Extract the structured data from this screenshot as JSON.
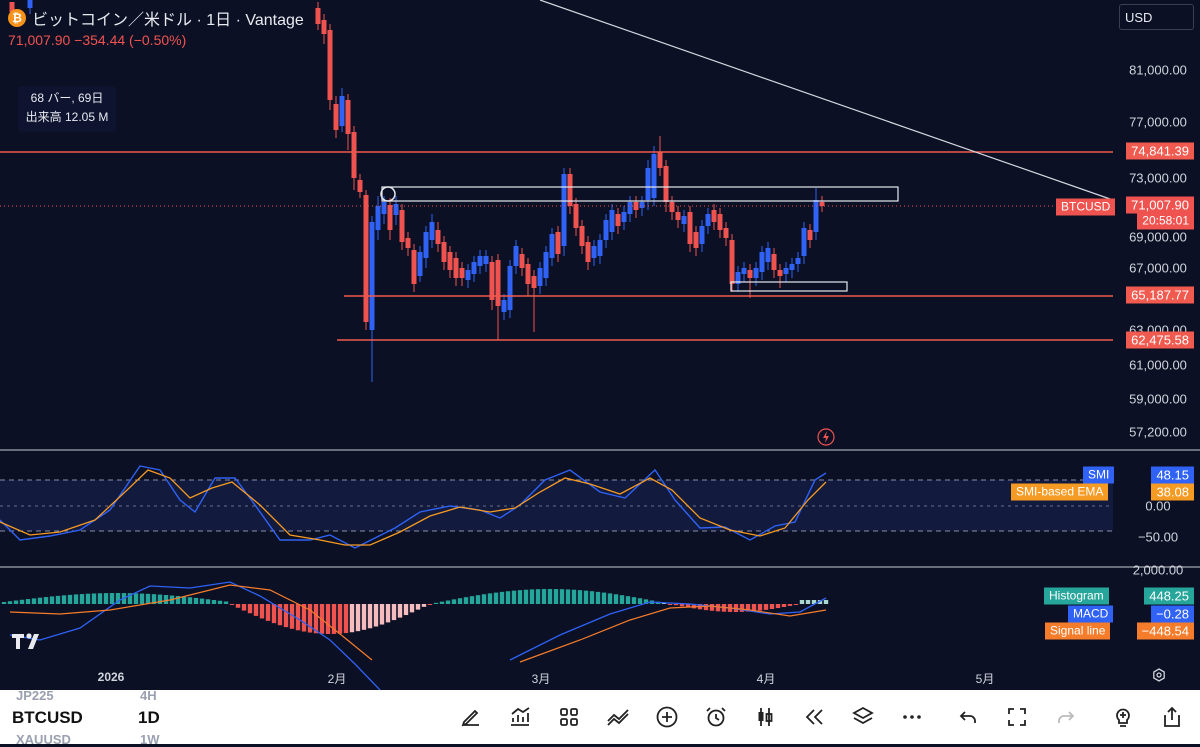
{
  "header": {
    "title": "ビットコイン／米ドル · 1日 · Vantage",
    "price_line": "71,007.90  −354.44 (−0.50%)",
    "coin_glyph": "₿"
  },
  "info": {
    "bars": "68 バー, 69日",
    "volume": "出来高 12.05 M"
  },
  "currency": "USD",
  "price_axis": {
    "ticks": [
      "81,000.00",
      "77,000.00",
      "73,000.00",
      "69,000.00",
      "67,000.00",
      "63,000.00",
      "61,000.00",
      "59,000.00",
      "57,200.00"
    ]
  },
  "levels": {
    "upper": "74,841.39",
    "mid": "65,187.77",
    "lower": "62,475.58"
  },
  "current": {
    "symbol": "BTCUSD",
    "price": "71,007.90",
    "countdown": "20:58:01"
  },
  "smi": {
    "ticks": [
      "0.00",
      "−50.00"
    ],
    "label_smi": "SMI",
    "value_smi": "48.15",
    "label_ema": "SMI-based EMA",
    "value_ema": "38.08"
  },
  "macd": {
    "tick": "2,000.00",
    "label_hist": "Histogram",
    "value_hist": "448.25",
    "label_macd": "MACD",
    "value_macd": "−0.28",
    "label_signal": "Signal line",
    "value_signal": "−448.54"
  },
  "time_axis": [
    "2026",
    "2月",
    "3月",
    "4月",
    "5月"
  ],
  "toolbar": {
    "symbol": "BTCUSD",
    "timeframe": "1D",
    "ghost_symbol_1": "JP225",
    "ghost_tf_1": "4H",
    "ghost_symbol_2": "XAUUSD",
    "ghost_tf_2": "1W"
  },
  "colors": {
    "bg": "#0b1024",
    "up": "#2f62f5",
    "down": "#ef5350",
    "level": "#f05a4f",
    "smi": "#2f62f5",
    "ema": "#f59a23"
  }
}
